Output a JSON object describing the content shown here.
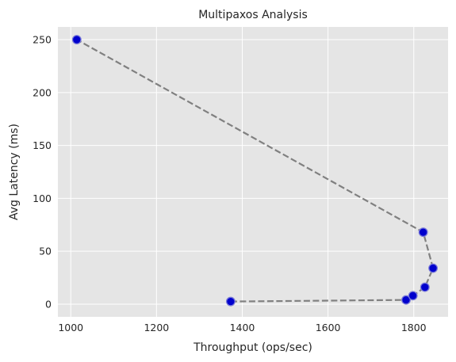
{
  "chart_data": {
    "type": "line",
    "title": "Multipaxos Analysis",
    "xlabel": "Throughput (ops/sec)",
    "ylabel": "Avg Latency (ms)",
    "xlim": [
      970,
      1880
    ],
    "ylim": [
      -12,
      262
    ],
    "xticks": [
      1000,
      1200,
      1400,
      1600,
      1800
    ],
    "yticks": [
      0,
      50,
      100,
      150,
      200,
      250
    ],
    "grid": true,
    "legend": "none",
    "series": [
      {
        "x": [
          1373,
          1782,
          1798,
          1826,
          1845,
          1822,
          1014
        ],
        "y": [
          2.5,
          4,
          8,
          16,
          34,
          68,
          250
        ],
        "line_style": "dashed",
        "line_color": "#808080",
        "marker": "circle",
        "marker_face_color": "#0000cd",
        "marker_edge_color": "#7b7bd9"
      }
    ]
  }
}
